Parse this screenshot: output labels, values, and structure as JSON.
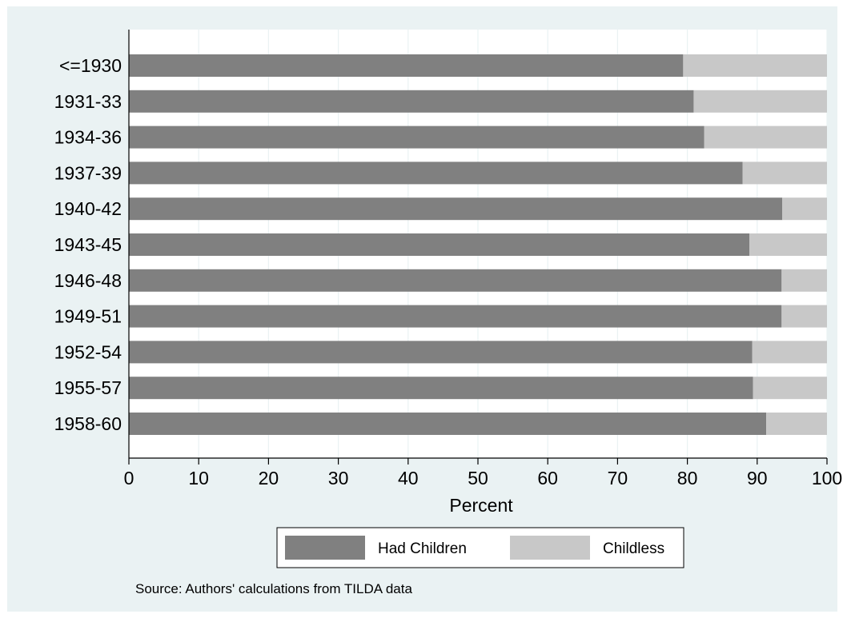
{
  "chart_data": {
    "type": "bar",
    "orientation": "horizontal",
    "stacked": true,
    "categories": [
      "<=1930",
      "1931-33",
      "1934-36",
      "1937-39",
      "1940-42",
      "1943-45",
      "1946-48",
      "1949-51",
      "1952-54",
      "1955-57",
      "1958-60"
    ],
    "series": [
      {
        "name": "Had Children",
        "color": "#808080",
        "values": [
          79.4,
          80.9,
          82.4,
          87.9,
          93.6,
          88.9,
          93.5,
          93.5,
          89.3,
          89.4,
          91.3
        ]
      },
      {
        "name": "Childless",
        "color": "#c8c8c8",
        "values": [
          20.6,
          19.1,
          17.6,
          12.1,
          6.4,
          11.1,
          6.5,
          6.5,
          10.7,
          10.6,
          8.7
        ]
      }
    ],
    "xlabel": "Percent",
    "xlim": [
      0,
      100
    ],
    "xticks": [
      0,
      10,
      20,
      30,
      40,
      50,
      60,
      70,
      80,
      90,
      100
    ],
    "grid": true,
    "legend_position": "bottom",
    "note": "Source: Authors' calculations from TILDA data",
    "colors": {
      "background": "#eaf2f3",
      "plot": "#ffffff",
      "grid": "#eaf2f3"
    }
  }
}
